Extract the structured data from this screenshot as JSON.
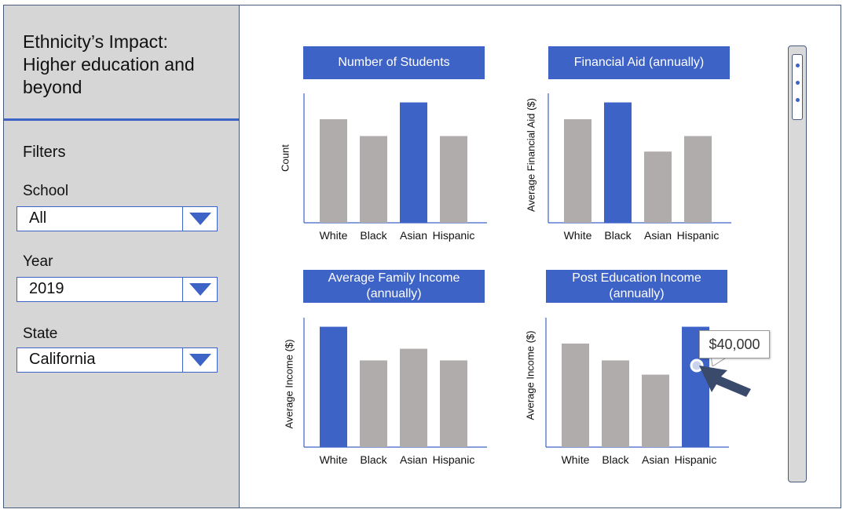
{
  "app": {
    "title": "Ethnicity’s Impact:\nHigher education and beyond"
  },
  "sidebar": {
    "filters_heading": "Filters",
    "filters": [
      {
        "label": "School",
        "value": "All"
      },
      {
        "label": "Year",
        "value": "2019"
      },
      {
        "label": "State",
        "value": "California"
      }
    ]
  },
  "colors": {
    "accent": "#3e63c7",
    "bar_default": "#b0acab",
    "sidebar_bg": "#d6d6d6"
  },
  "icons": {
    "dropdown": "triangle-down-icon",
    "cursor": "arrow-cursor-icon"
  },
  "tooltip": {
    "text": "$40,000"
  },
  "chart_data": [
    {
      "type": "bar",
      "title": "Number of Students",
      "ylabel": "Count",
      "xlabel": "",
      "categories": [
        "White",
        "Black",
        "Asian",
        "Hispanic"
      ],
      "values": [
        80,
        67,
        93,
        67
      ],
      "highlight_index": 2,
      "ylim": [
        0,
        100
      ]
    },
    {
      "type": "bar",
      "title": "Financial Aid (annually)",
      "ylabel": "Average Financial Aid ($)",
      "xlabel": "",
      "categories": [
        "White",
        "Black",
        "Asian",
        "Hispanic"
      ],
      "values": [
        80,
        93,
        55,
        67
      ],
      "highlight_index": 1,
      "ylim": [
        0,
        100
      ]
    },
    {
      "type": "bar",
      "title": "Average Family Income\n(annually)",
      "ylabel": "Average Income ($)",
      "xlabel": "",
      "categories": [
        "White",
        "Black",
        "Asian",
        "Hispanic"
      ],
      "values": [
        93,
        67,
        76,
        67
      ],
      "highlight_index": 0,
      "ylim": [
        0,
        100
      ]
    },
    {
      "type": "bar",
      "title": "Post Education Income\n(annually)",
      "ylabel": "Average Income ($)",
      "xlabel": "",
      "categories": [
        "White",
        "Black",
        "Asian",
        "Hispanic"
      ],
      "values": [
        80,
        67,
        56,
        93
      ],
      "highlight_index": 3,
      "ylim": [
        0,
        100
      ]
    }
  ]
}
